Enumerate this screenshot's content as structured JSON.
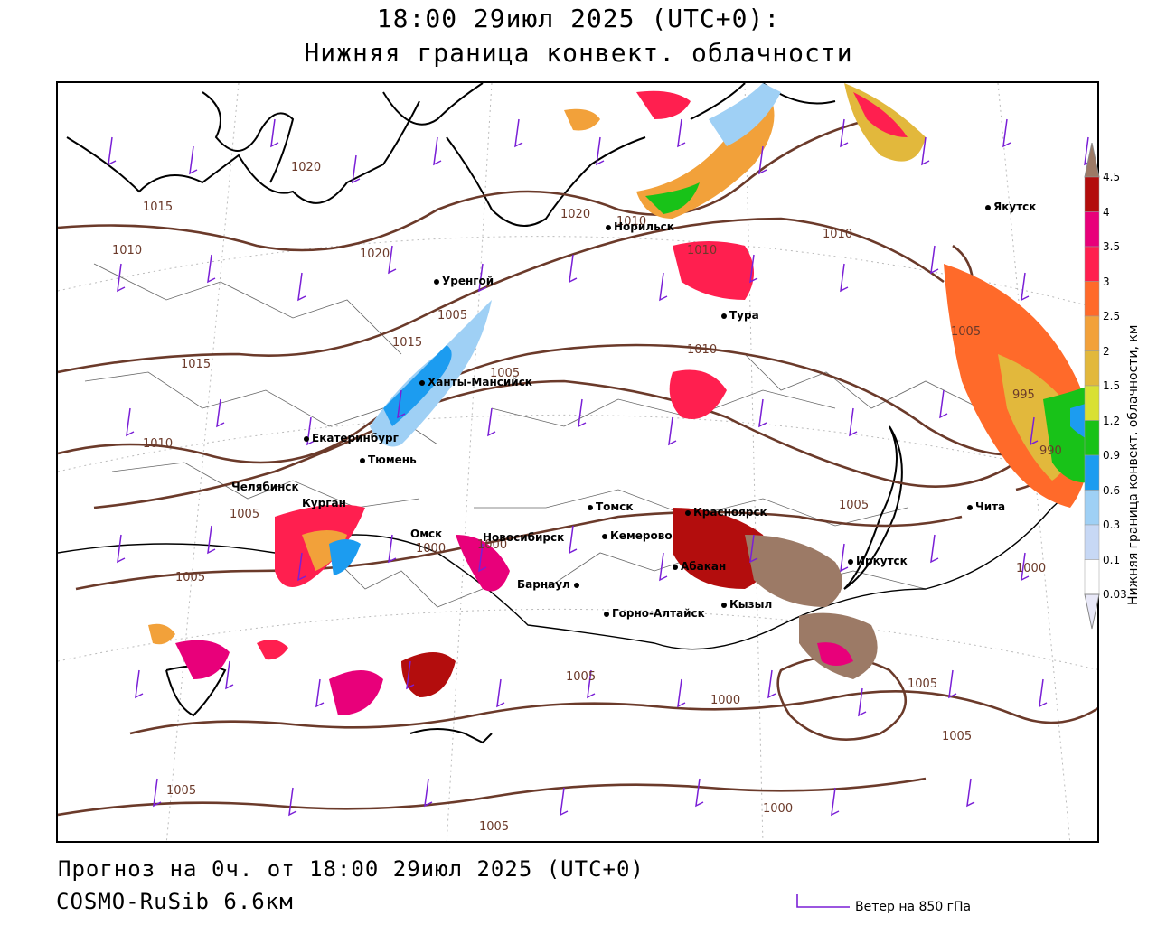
{
  "header": {
    "title": "18:00 29июл 2025 (UTC+0):",
    "subtitle": "Нижняя граница конвект. облачности"
  },
  "footer": {
    "forecast": "Прогноз на 0ч. от 18:00 29июл 2025 (UTC+0)",
    "model": "COSMO-RuSib 6.6км",
    "wind_legend": "Ветер на 850 гПа"
  },
  "legend": {
    "title": "Нижняя граница конвект. облачности, км",
    "levels": [
      {
        "label": "4.5",
        "color": "#9c7a66"
      },
      {
        "label": "4",
        "color": "#b30d0d"
      },
      {
        "label": "3.5",
        "color": "#e8007a"
      },
      {
        "label": "3",
        "color": "#ff1f4f"
      },
      {
        "label": "2.5",
        "color": "#ff6a2a"
      },
      {
        "label": "2",
        "color": "#f2a13a"
      },
      {
        "label": "1.5",
        "color": "#e2b83c"
      },
      {
        "label": "1.2",
        "color": "#d9e033"
      },
      {
        "label": "0.9",
        "color": "#18c218"
      },
      {
        "label": "0.6",
        "color": "#1c9cf0"
      },
      {
        "label": "0.3",
        "color": "#9fd0f5"
      },
      {
        "label": "0.1",
        "color": "#c7d8f5"
      },
      {
        "label": "0.03",
        "color": "#ffffff"
      }
    ]
  },
  "cities": [
    {
      "name": "Якутск"
    },
    {
      "name": "Норильск"
    },
    {
      "name": "Тура"
    },
    {
      "name": "Уренгой"
    },
    {
      "name": "Ханты-Мансийск"
    },
    {
      "name": "Екатеринбург"
    },
    {
      "name": "Тюмень"
    },
    {
      "name": "Челябинск"
    },
    {
      "name": "Курган"
    },
    {
      "name": "Омск"
    },
    {
      "name": "Новосибирск"
    },
    {
      "name": "Томск"
    },
    {
      "name": "Кемерово"
    },
    {
      "name": "Красноярск"
    },
    {
      "name": "Абакан"
    },
    {
      "name": "Барнаул"
    },
    {
      "name": "Горно-Алтайск"
    },
    {
      "name": "Кызыл"
    },
    {
      "name": "Иркутск"
    },
    {
      "name": "Чита"
    }
  ],
  "isobars": [
    "1010",
    "1020",
    "1015",
    "1020",
    "1015",
    "1020",
    "1010",
    "1010",
    "1015",
    "1005",
    "1010",
    "1010",
    "1005",
    "995",
    "990",
    "1010",
    "1005",
    "1000",
    "1000",
    "1005",
    "1005",
    "1000",
    "1005",
    "1005",
    "1000",
    "1005",
    "1005",
    "1000",
    "1000",
    "1005",
    "1005"
  ],
  "colors": {
    "isobar": "#6b3a2a",
    "coast": "#000000",
    "wind_barb": "#7a1fd6",
    "borders": "#555555"
  }
}
